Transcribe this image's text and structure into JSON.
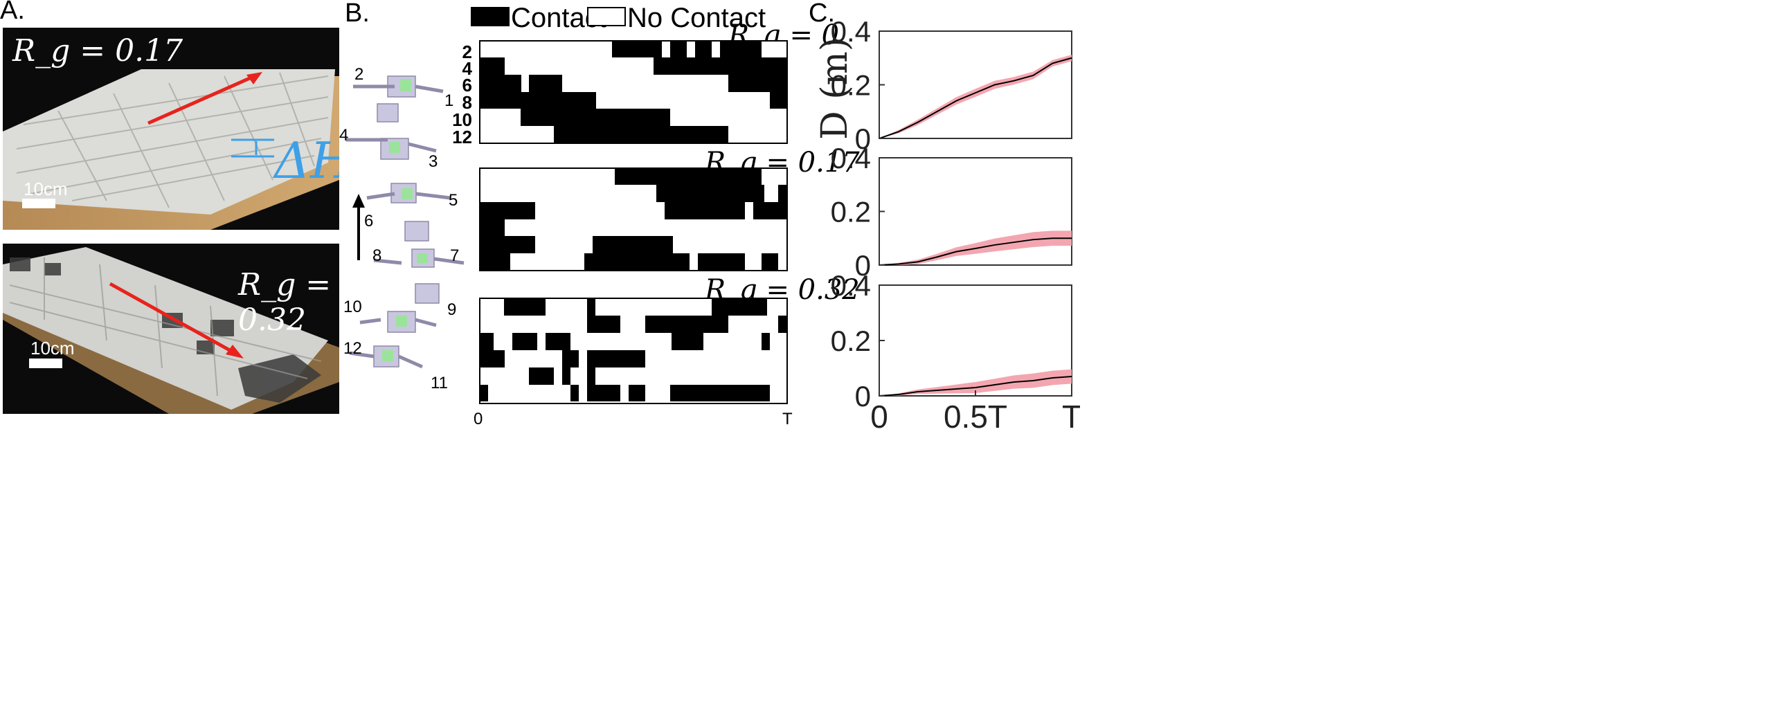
{
  "panel_labels": {
    "a": "A.",
    "b": "B.",
    "c": "C."
  },
  "photos": {
    "top": {
      "rg_label": "R_g = 0.17",
      "scale_label": "10cm",
      "dh_label": "ΔH"
    },
    "bottom": {
      "rg_label": "R_g = 0.32",
      "scale_label": "10cm"
    }
  },
  "legend": {
    "contact": "Contact",
    "no_contact": "No Contact"
  },
  "robot": {
    "leg_labels": [
      "1",
      "2",
      "3",
      "4",
      "5",
      "6",
      "7",
      "8",
      "9",
      "10",
      "11",
      "12"
    ],
    "arrow_label": "6"
  },
  "rasters": {
    "leg_row_labels": [
      "2",
      "4",
      "6",
      "8",
      "10",
      "12"
    ],
    "x_ticks": [
      "0",
      "T"
    ],
    "panels": [
      {
        "title": "R_g = 0"
      },
      {
        "title": "R_g = 0.17"
      },
      {
        "title": "R_g = 0.32"
      }
    ]
  },
  "colors": {
    "contact": "#000000",
    "no_contact": "#ffffff",
    "arrow": "#e8231c",
    "dh": "#3ea0e6",
    "band": "#f3a6b0",
    "line": "#000000"
  },
  "chart_data": [
    {
      "type": "line",
      "title": "",
      "xlabel": "",
      "ylabel": "D (m)",
      "xticks": [
        "0",
        "0.5T",
        "T"
      ],
      "yticks": [
        "0",
        "0.2",
        "0.4"
      ],
      "ylim": [
        0,
        0.4
      ],
      "x": [
        0,
        0.1,
        0.2,
        0.3,
        0.4,
        0.5,
        0.6,
        0.7,
        0.8,
        0.9,
        1.0
      ],
      "series": [
        {
          "mean": [
            0,
            0.025,
            0.06,
            0.1,
            0.14,
            0.17,
            0.2,
            0.215,
            0.235,
            0.28,
            0.3
          ],
          "band": [
            0,
            0.006,
            0.01,
            0.012,
            0.014,
            0.015,
            0.015,
            0.014,
            0.014,
            0.012,
            0.012
          ]
        }
      ]
    },
    {
      "type": "line",
      "title": "",
      "xlabel": "",
      "ylabel": "",
      "xticks": [
        "0",
        "0.5T",
        "T"
      ],
      "yticks": [
        "0",
        "0.2",
        "0.4"
      ],
      "ylim": [
        0,
        0.4
      ],
      "x": [
        0,
        0.1,
        0.2,
        0.3,
        0.4,
        0.5,
        0.6,
        0.7,
        0.8,
        0.9,
        1.0
      ],
      "series": [
        {
          "mean": [
            0,
            0.004,
            0.012,
            0.03,
            0.05,
            0.062,
            0.075,
            0.085,
            0.095,
            0.1,
            0.1
          ],
          "band": [
            0,
            0.004,
            0.008,
            0.012,
            0.016,
            0.02,
            0.024,
            0.026,
            0.028,
            0.028,
            0.028
          ]
        }
      ]
    },
    {
      "type": "line",
      "title": "",
      "xlabel": "",
      "ylabel": "",
      "xticks": [
        "0",
        "0.5T",
        "T"
      ],
      "yticks": [
        "0",
        "0.2",
        "0.4"
      ],
      "ylim": [
        0,
        0.4
      ],
      "x": [
        0,
        0.1,
        0.2,
        0.3,
        0.4,
        0.5,
        0.6,
        0.7,
        0.8,
        0.9,
        1.0
      ],
      "series": [
        {
          "mean": [
            0,
            0.005,
            0.015,
            0.02,
            0.025,
            0.03,
            0.04,
            0.05,
            0.055,
            0.065,
            0.07
          ],
          "band": [
            0,
            0.004,
            0.008,
            0.012,
            0.016,
            0.02,
            0.022,
            0.024,
            0.026,
            0.026,
            0.026
          ]
        }
      ]
    }
  ]
}
